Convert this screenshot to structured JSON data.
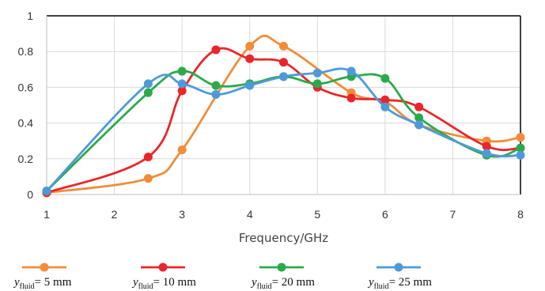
{
  "chart_data": {
    "type": "line",
    "title": "",
    "xlabel": "Frequency/GHz",
    "ylabel": "",
    "xlim": [
      1,
      8
    ],
    "ylim": [
      0,
      1
    ],
    "x_ticks": [
      "1",
      "2",
      "3",
      "4",
      "5",
      "6",
      "7",
      "8"
    ],
    "y_ticks": [
      "0",
      "0.2",
      "0.4",
      "0.6",
      "0.8",
      "1"
    ],
    "grid": true,
    "legend_position": "bottom",
    "series": [
      {
        "legend_symbol": "y",
        "legend_subscript": "fluid",
        "legend_suffix": "= 5 mm",
        "color": "#F28C38",
        "points": [
          [
            1,
            0.01
          ],
          [
            2.5,
            0.09
          ],
          [
            3,
            0.25
          ],
          [
            4,
            0.83
          ],
          [
            4.5,
            0.83
          ],
          [
            5.5,
            0.57
          ],
          [
            6,
            0.52
          ],
          [
            6.5,
            0.39
          ],
          [
            7.5,
            0.3
          ],
          [
            8,
            0.32
          ]
        ]
      },
      {
        "legend_symbol": "y",
        "legend_subscript": "fluid",
        "legend_suffix": "= 10 mm",
        "color": "#E8262B",
        "points": [
          [
            1,
            0.01
          ],
          [
            2.5,
            0.21
          ],
          [
            3,
            0.58
          ],
          [
            3.5,
            0.81
          ],
          [
            4,
            0.76
          ],
          [
            4.5,
            0.74
          ],
          [
            5,
            0.6
          ],
          [
            5.5,
            0.54
          ],
          [
            6,
            0.53
          ],
          [
            6.5,
            0.49
          ],
          [
            7.5,
            0.27
          ],
          [
            8,
            0.26
          ]
        ]
      },
      {
        "legend_symbol": "y",
        "legend_subscript": "fluid",
        "legend_suffix": "= 20 mm",
        "color": "#2BAA4A",
        "points": [
          [
            1,
            0.02
          ],
          [
            2.5,
            0.57
          ],
          [
            3,
            0.69
          ],
          [
            3.5,
            0.61
          ],
          [
            4,
            0.62
          ],
          [
            4.5,
            0.66
          ],
          [
            5,
            0.62
          ],
          [
            5.5,
            0.66
          ],
          [
            6,
            0.65
          ],
          [
            6.5,
            0.43
          ],
          [
            7.5,
            0.22
          ],
          [
            8,
            0.26
          ]
        ]
      },
      {
        "legend_symbol": "y",
        "legend_subscript": "fluid",
        "legend_suffix": "= 25 mm",
        "color": "#4E9AD8",
        "points": [
          [
            1,
            0.02
          ],
          [
            2.5,
            0.62
          ],
          [
            3,
            0.62
          ],
          [
            3.5,
            0.56
          ],
          [
            4,
            0.61
          ],
          [
            4.5,
            0.66
          ],
          [
            5,
            0.68
          ],
          [
            5.5,
            0.69
          ],
          [
            6,
            0.49
          ],
          [
            6.5,
            0.39
          ],
          [
            7.5,
            0.23
          ],
          [
            8,
            0.22
          ]
        ]
      }
    ]
  }
}
